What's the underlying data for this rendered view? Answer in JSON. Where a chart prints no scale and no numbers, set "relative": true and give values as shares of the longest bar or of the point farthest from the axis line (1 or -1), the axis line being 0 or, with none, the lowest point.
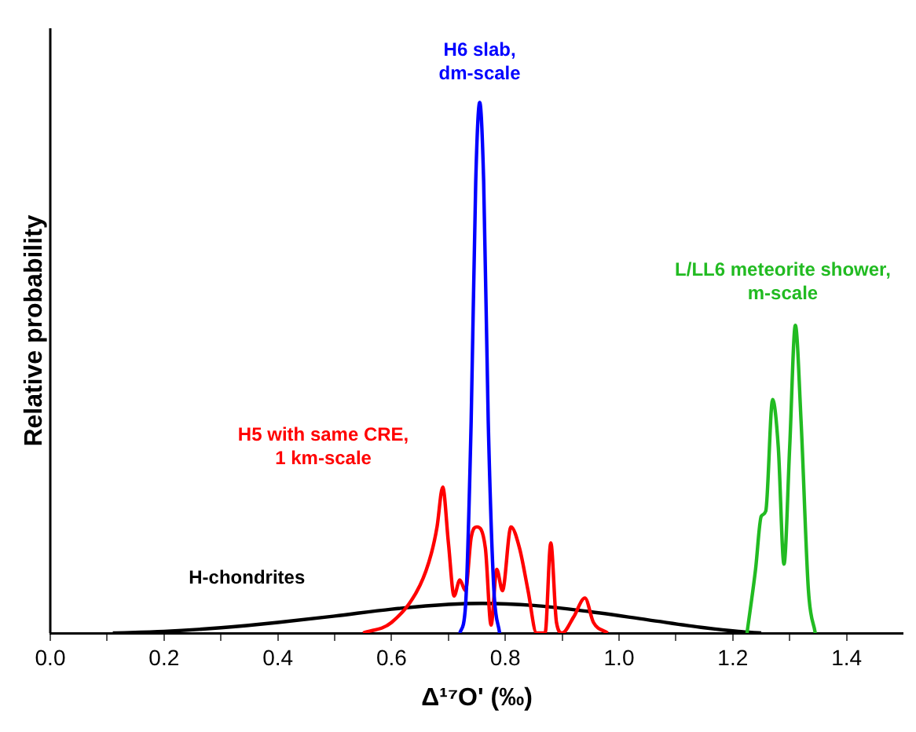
{
  "chart_data": {
    "type": "line",
    "relative": true,
    "xlabel": "Δ¹⁷O' (‰)",
    "ylabel": "Relative probability",
    "xlim": [
      0,
      1.5
    ],
    "xticks": [
      {
        "value": 0,
        "label": "0.0"
      },
      0.2,
      0.4,
      0.6,
      0.8,
      {
        "value": 1,
        "label": "1.0"
      },
      1.2,
      1.4
    ],
    "grid": false,
    "legend": false,
    "series": [
      {
        "name": "H-chondrites",
        "color": "#000000",
        "x": [
          0.11,
          0.2,
          0.3,
          0.4,
          0.5,
          0.6,
          0.7,
          0.76,
          0.85,
          0.95,
          1.05,
          1.15,
          1.21,
          1.25
        ],
        "values": [
          0,
          0.003,
          0.01,
          0.02,
          0.032,
          0.045,
          0.054,
          0.056,
          0.052,
          0.04,
          0.025,
          0.01,
          0.003,
          0
        ]
      },
      {
        "name": "H5 with same CRE, 1 km-scale",
        "color": "#ff0000",
        "x": [
          0.55,
          0.6,
          0.65,
          0.67,
          0.68,
          0.69,
          0.7,
          0.71,
          0.72,
          0.73,
          0.74,
          0.75,
          0.765,
          0.775,
          0.785,
          0.795,
          0.81,
          0.825,
          0.84,
          0.855,
          0.87,
          0.88,
          0.89,
          0.9,
          0.92,
          0.94,
          0.955,
          0.98
        ],
        "values": [
          0,
          0.02,
          0.09,
          0.15,
          0.2,
          0.275,
          0.17,
          0.07,
          0.1,
          0.08,
          0.18,
          0.2,
          0.16,
          0.015,
          0.12,
          0.08,
          0.2,
          0.16,
          0.08,
          0,
          0,
          0.17,
          0.02,
          0,
          0.03,
          0.066,
          0.02,
          0
        ]
      },
      {
        "name": "H6 slab, dm-scale",
        "color": "#0000ff",
        "x": [
          0.72,
          0.73,
          0.74,
          0.748,
          0.755,
          0.762,
          0.77,
          0.78,
          0.79
        ],
        "values": [
          0,
          0.05,
          0.4,
          0.85,
          1,
          0.85,
          0.4,
          0.08,
          0
        ]
      },
      {
        "name": "L/LL6 meteorite shower, m-scale",
        "color": "#22bb22",
        "x": [
          1.225,
          1.24,
          1.25,
          1.258,
          1.27,
          1.28,
          1.29,
          1.3,
          1.31,
          1.32,
          1.333,
          1.345
        ],
        "values": [
          0,
          0.12,
          0.22,
          0.23,
          0.44,
          0.35,
          0.13,
          0.35,
          0.58,
          0.4,
          0.08,
          0
        ]
      }
    ]
  }
}
